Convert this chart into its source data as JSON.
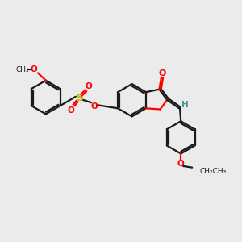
{
  "bg_color": "#ebebeb",
  "bond_color": "#1a1a1a",
  "oxygen_color": "#ff0000",
  "sulfur_color": "#b8b800",
  "h_color": "#4a9090",
  "lw": 1.6,
  "dbl_sep": 0.09,
  "figsize": [
    3.0,
    3.0
  ],
  "dpi": 100,
  "xlim": [
    0,
    12
  ],
  "ylim": [
    0,
    10
  ]
}
